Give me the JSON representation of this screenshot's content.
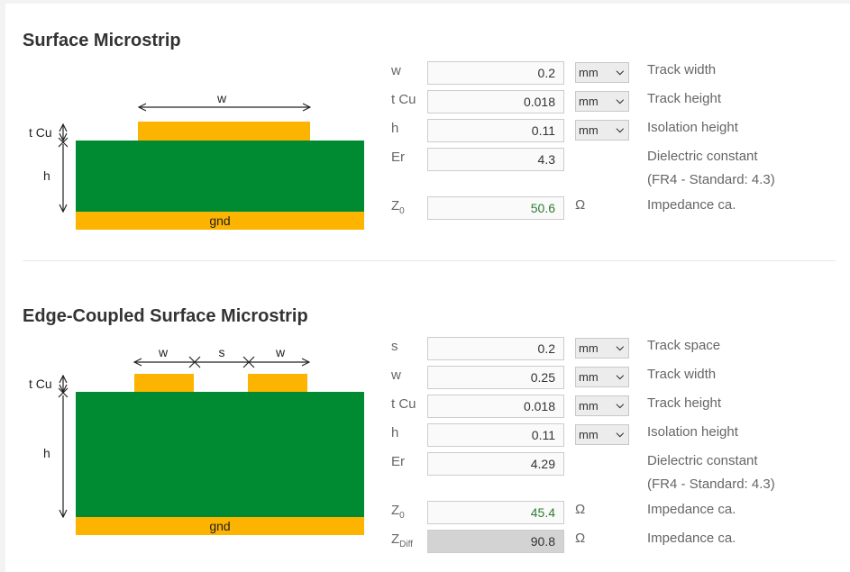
{
  "sections": [
    {
      "title": "Surface Microstrip",
      "diagram": {
        "w": "w",
        "tcu": "t Cu",
        "h": "h",
        "gnd": "gnd"
      },
      "rows": [
        {
          "label": "w",
          "value": "0.2",
          "unit": "mm",
          "desc": "Track width"
        },
        {
          "label": "t Cu",
          "value": "0.018",
          "unit": "mm",
          "desc": "Track height"
        },
        {
          "label": "h",
          "value": "0.11",
          "unit": "mm",
          "desc": "Isolation height"
        },
        {
          "label": "Er",
          "value": "4.3",
          "desc": "Dielectric constant",
          "desc2": "(FR4 - Standard: 4.3)"
        },
        {
          "label": "Z",
          "sub": "0",
          "value": "50.6",
          "ohm": "Ω",
          "desc": "Impedance ca."
        }
      ]
    },
    {
      "title": "Edge-Coupled Surface Microstrip",
      "diagram": {
        "w1": "w",
        "s": "s",
        "w2": "w",
        "tcu": "t Cu",
        "h": "h",
        "gnd": "gnd"
      },
      "rows": [
        {
          "label": "s",
          "value": "0.2",
          "unit": "mm",
          "desc": "Track space"
        },
        {
          "label": "w",
          "value": "0.25",
          "unit": "mm",
          "desc": "Track width"
        },
        {
          "label": "t Cu",
          "value": "0.018",
          "unit": "mm",
          "desc": "Track height"
        },
        {
          "label": "h",
          "value": "0.11",
          "unit": "mm",
          "desc": "Isolation height"
        },
        {
          "label": "Er",
          "value": "4.29",
          "desc": "Dielectric constant",
          "desc2": "(FR4 - Standard: 4.3)"
        },
        {
          "label": "Z",
          "sub": "0",
          "value": "45.4",
          "ohm": "Ω",
          "desc": "Impedance ca."
        },
        {
          "label": "Z",
          "sub": "Diff",
          "value": "90.8",
          "ohm": "Ω",
          "desc": "Impedance ca."
        }
      ]
    }
  ],
  "colors": {
    "copper": "#fdb400",
    "dielectric": "#008a32",
    "z0_text": "#2e7d32",
    "zdiff_bg": "#d3d3d3"
  }
}
